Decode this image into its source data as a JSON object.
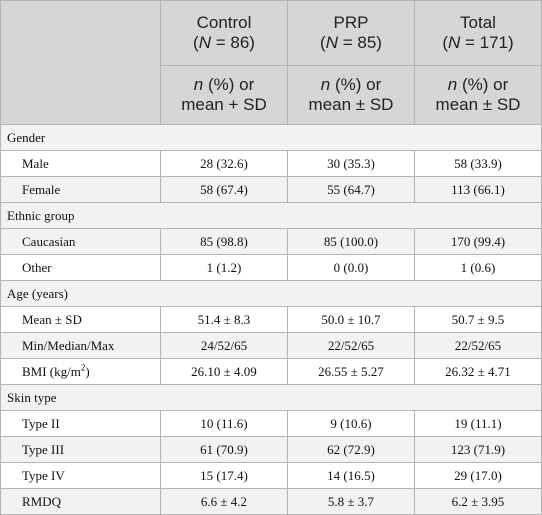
{
  "header": {
    "groups": [
      {
        "name": "Control",
        "n_prefix": "(",
        "n_label": "N",
        "n_eq": " = 86)"
      },
      {
        "name": "PRP",
        "n_prefix": "(",
        "n_label": "N",
        "n_eq": " = 85)"
      },
      {
        "name": "Total",
        "n_prefix": "(",
        "n_label": "N",
        "n_eq": " = 171)"
      }
    ],
    "stat_labels": [
      {
        "n": "n",
        "rest1": " (%) or",
        "rest2": "mean + SD"
      },
      {
        "n": "n",
        "rest1": " (%) or",
        "rest2": "mean ± SD"
      },
      {
        "n": "n",
        "rest1": " (%) or",
        "rest2": "mean ± SD"
      }
    ]
  },
  "sections": {
    "gender": "Gender",
    "ethnic": "Ethnic group",
    "age": "Age (years)",
    "skin": "Skin type"
  },
  "rows": {
    "male": {
      "label": "Male",
      "values": [
        "28 (32.6)",
        "30 (35.3)",
        "58 (33.9)"
      ]
    },
    "female": {
      "label": "Female",
      "values": [
        "58 (67.4)",
        "55 (64.7)",
        "113 (66.1)"
      ]
    },
    "caucasian": {
      "label": "Caucasian",
      "values": [
        "85 (98.8)",
        "85 (100.0)",
        "170 (99.4)"
      ]
    },
    "other": {
      "label": "Other",
      "values": [
        "1 (1.2)",
        "0 (0.0)",
        "1 (0.6)"
      ]
    },
    "mean_sd": {
      "label": "Mean ± SD",
      "values": [
        "51.4 ± 8.3",
        "50.0 ± 10.7",
        "50.7 ± 9.5"
      ]
    },
    "min_med_max": {
      "label": "Min/Median/Max",
      "values": [
        "24/52/65",
        "22/52/65",
        "22/52/65"
      ]
    },
    "bmi": {
      "label_pre": "BMI (kg/m",
      "label_sup": "2",
      "label_post": ")",
      "values": [
        "26.10 ± 4.09",
        "26.55 ± 5.27",
        "26.32 ± 4.71"
      ]
    },
    "type2": {
      "label": "Type II",
      "values": [
        "10 (11.6)",
        "9 (10.6)",
        "19 (11.1)"
      ]
    },
    "type3": {
      "label": "Type III",
      "values": [
        "61 (70.9)",
        "62 (72.9)",
        "123 (71.9)"
      ]
    },
    "type4": {
      "label": "Type IV",
      "values": [
        "15 (17.4)",
        "14 (16.5)",
        "29 (17.0)"
      ]
    },
    "rmdq": {
      "label": "RMDQ",
      "values": [
        "6.6 ± 4.2",
        "5.8 ± 3.7",
        "6.2 ± 3.95"
      ]
    }
  }
}
